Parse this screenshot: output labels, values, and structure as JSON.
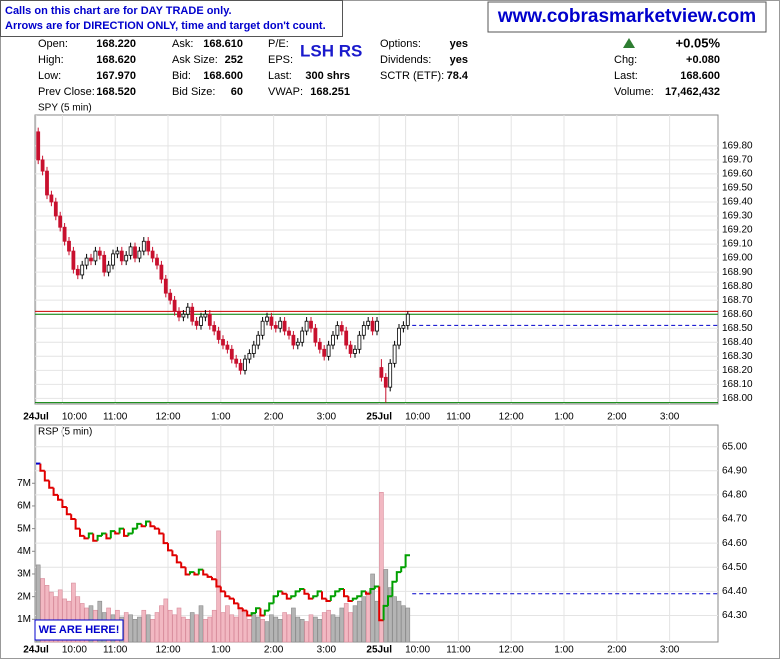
{
  "notes": [
    "Calls on this chart are for DAY TRADE only.",
    "Arrows are for DIRECTION ONLY, time and target don't count."
  ],
  "website": "www.cobrasmarketview.com",
  "quote": {
    "symbol_label": "LSH RS",
    "columns": [
      [
        {
          "label": "Open:",
          "value": "168.220"
        },
        {
          "label": "High:",
          "value": "168.620"
        },
        {
          "label": "Low:",
          "value": "167.970"
        },
        {
          "label": "Prev Close:",
          "value": "168.520"
        }
      ],
      [
        {
          "label": "Ask:",
          "value": "168.610"
        },
        {
          "label": "Ask Size:",
          "value": "252"
        },
        {
          "label": "Bid:",
          "value": "168.600"
        },
        {
          "label": "Bid Size:",
          "value": "60"
        }
      ],
      [
        {
          "label": "P/E:"
        },
        {
          "label": "EPS:"
        },
        {
          "label": "Last:",
          "value": "300 shrs"
        },
        {
          "label": "VWAP:",
          "value": "168.251"
        }
      ],
      [
        {
          "label": "Options:",
          "value": "yes"
        },
        {
          "label": "Dividends:",
          "value": "yes"
        },
        {
          "label": "SCTR (ETF):",
          "value": "78.4"
        }
      ],
      [
        {
          "label": "",
          "value": "+0.05%"
        },
        {
          "label": "Chg:",
          "value": "+0.080"
        },
        {
          "label": "Last:",
          "value": "168.600"
        },
        {
          "label": "Volume:",
          "value": "17,462,432"
        }
      ]
    ]
  },
  "chart_data": [
    {
      "type": "candlestick",
      "title": "SPY (5 min)",
      "up_color": "#ffffff",
      "down_color": "#c8102e",
      "outline_color": "#000000",
      "ylim": [
        167.96,
        170.02
      ],
      "yticks": [
        {
          "value": 168,
          "label": "168.00"
        },
        {
          "value": 168.1,
          "label": "168.10"
        },
        {
          "value": 168.2,
          "label": "168.20"
        },
        {
          "value": 168.3,
          "label": "168.30"
        },
        {
          "value": 168.4,
          "label": "168.40"
        },
        {
          "value": 168.5,
          "label": "168.50"
        },
        {
          "value": 168.6,
          "label": "168.60"
        },
        {
          "value": 168.7,
          "label": "168.70"
        },
        {
          "value": 168.8,
          "label": "168.80"
        },
        {
          "value": 168.9,
          "label": "168.90"
        },
        {
          "value": 169,
          "label": "169.00"
        },
        {
          "value": 169.1,
          "label": "169.10"
        },
        {
          "value": 169.2,
          "label": "169.20"
        },
        {
          "value": 169.3,
          "label": "169.30"
        },
        {
          "value": 169.4,
          "label": "169.40"
        },
        {
          "value": 169.5,
          "label": "169.50"
        },
        {
          "value": 169.6,
          "label": "169.60"
        },
        {
          "value": 169.7,
          "label": "169.70"
        },
        {
          "value": 169.8,
          "label": "169.80"
        }
      ],
      "xticks": [
        {
          "date": "24Jul",
          "times": [
            "10:00",
            "11:00",
            "12:00",
            "1:00",
            "2:00",
            "3:00"
          ]
        },
        {
          "date": "25Jul",
          "times": [
            "10:00",
            "11:00",
            "12:00",
            "1:00",
            "2:00",
            "3:00"
          ]
        }
      ],
      "grid": true,
      "reference_lines": [
        {
          "value": 168.62,
          "color": "#cc0000",
          "dash": false
        },
        {
          "value": 168.6,
          "color": "#008000",
          "dash": false
        },
        {
          "value": 168.52,
          "color": "#0000cc",
          "dash": true
        },
        {
          "value": 167.97,
          "color": "#008000",
          "dash": false
        }
      ],
      "ohlc": [
        [
          169.9,
          169.93,
          169.67,
          169.7
        ],
        [
          169.7,
          169.73,
          169.59,
          169.62
        ],
        [
          169.62,
          169.65,
          169.42,
          169.45
        ],
        [
          169.45,
          169.48,
          169.37,
          169.4
        ],
        [
          169.4,
          169.43,
          169.27,
          169.3
        ],
        [
          169.3,
          169.33,
          169.19,
          169.22
        ],
        [
          169.22,
          169.25,
          169.09,
          169.12
        ],
        [
          169.12,
          169.15,
          169.02,
          169.05
        ],
        [
          169.05,
          169.08,
          168.89,
          168.92
        ],
        [
          168.92,
          168.95,
          168.85,
          168.88
        ],
        [
          168.88,
          168.98,
          168.85,
          168.95
        ],
        [
          168.95,
          169.03,
          168.92,
          169.0
        ],
        [
          169.0,
          169.03,
          168.95,
          168.98
        ],
        [
          168.98,
          169.08,
          168.95,
          169.05
        ],
        [
          169.05,
          169.08,
          168.99,
          169.02
        ],
        [
          169.02,
          169.05,
          168.87,
          168.9
        ],
        [
          168.9,
          168.98,
          168.87,
          168.95
        ],
        [
          168.95,
          169.06,
          168.92,
          169.03
        ],
        [
          169.03,
          169.08,
          169.0,
          169.05
        ],
        [
          169.05,
          169.08,
          168.95,
          168.98
        ],
        [
          168.98,
          169.05,
          168.95,
          169.02
        ],
        [
          169.02,
          169.11,
          168.99,
          169.08
        ],
        [
          169.08,
          169.11,
          168.97,
          169.0
        ],
        [
          169.0,
          169.08,
          168.97,
          169.05
        ],
        [
          169.05,
          169.15,
          169.02,
          169.12
        ],
        [
          169.12,
          169.15,
          169.02,
          169.05
        ],
        [
          169.05,
          169.08,
          168.97,
          169.0
        ],
        [
          169.0,
          169.03,
          168.92,
          168.95
        ],
        [
          168.95,
          168.98,
          168.82,
          168.85
        ],
        [
          168.85,
          168.88,
          168.72,
          168.75
        ],
        [
          168.75,
          168.78,
          168.67,
          168.7
        ],
        [
          168.7,
          168.73,
          168.59,
          168.62
        ],
        [
          168.62,
          168.65,
          168.55,
          168.58
        ],
        [
          168.58,
          168.63,
          168.55,
          168.6
        ],
        [
          168.6,
          168.68,
          168.57,
          168.65
        ],
        [
          168.65,
          168.68,
          168.52,
          168.55
        ],
        [
          168.55,
          168.58,
          168.49,
          168.52
        ],
        [
          168.52,
          168.61,
          168.49,
          168.58
        ],
        [
          168.58,
          168.63,
          168.55,
          168.6
        ],
        [
          168.6,
          168.63,
          168.49,
          168.52
        ],
        [
          168.52,
          168.55,
          168.45,
          168.48
        ],
        [
          168.48,
          168.51,
          168.39,
          168.42
        ],
        [
          168.42,
          168.45,
          168.35,
          168.38
        ],
        [
          168.38,
          168.41,
          168.32,
          168.35
        ],
        [
          168.35,
          168.38,
          168.25,
          168.28
        ],
        [
          168.28,
          168.31,
          168.22,
          168.25
        ],
        [
          168.25,
          168.28,
          168.17,
          168.2
        ],
        [
          168.2,
          168.31,
          168.17,
          168.28
        ],
        [
          168.28,
          168.35,
          168.25,
          168.32
        ],
        [
          168.32,
          168.41,
          168.29,
          168.38
        ],
        [
          168.38,
          168.48,
          168.35,
          168.45
        ],
        [
          168.45,
          168.58,
          168.42,
          168.55
        ],
        [
          168.55,
          168.61,
          168.52,
          168.58
        ],
        [
          168.58,
          168.61,
          168.49,
          168.52
        ],
        [
          168.52,
          168.55,
          168.47,
          168.5
        ],
        [
          168.5,
          168.58,
          168.47,
          168.55
        ],
        [
          168.55,
          168.58,
          168.45,
          168.48
        ],
        [
          168.48,
          168.51,
          168.42,
          168.45
        ],
        [
          168.45,
          168.48,
          168.35,
          168.38
        ],
        [
          168.38,
          168.43,
          168.35,
          168.4
        ],
        [
          168.4,
          168.51,
          168.37,
          168.48
        ],
        [
          168.48,
          168.58,
          168.45,
          168.55
        ],
        [
          168.55,
          168.58,
          168.47,
          168.5
        ],
        [
          168.5,
          168.53,
          168.37,
          168.4
        ],
        [
          168.4,
          168.43,
          168.32,
          168.35
        ],
        [
          168.35,
          168.38,
          168.27,
          168.3
        ],
        [
          168.3,
          168.41,
          168.27,
          168.38
        ],
        [
          168.38,
          168.48,
          168.35,
          168.45
        ],
        [
          168.45,
          168.55,
          168.42,
          168.52
        ],
        [
          168.52,
          168.55,
          168.45,
          168.48
        ],
        [
          168.48,
          168.51,
          168.35,
          168.38
        ],
        [
          168.38,
          168.41,
          168.29,
          168.32
        ],
        [
          168.32,
          168.38,
          168.29,
          168.35
        ],
        [
          168.35,
          168.48,
          168.32,
          168.45
        ],
        [
          168.45,
          168.55,
          168.42,
          168.52
        ],
        [
          168.52,
          168.58,
          168.49,
          168.55
        ],
        [
          168.55,
          168.58,
          168.45,
          168.48
        ],
        [
          168.48,
          168.58,
          168.45,
          168.55
        ],
        [
          168.22,
          168.28,
          168.12,
          168.15
        ],
        [
          168.15,
          168.18,
          167.97,
          168.08
        ],
        [
          168.08,
          168.28,
          168.05,
          168.25
        ],
        [
          168.25,
          168.41,
          168.22,
          168.38
        ],
        [
          168.38,
          168.53,
          168.35,
          168.5
        ],
        [
          168.5,
          168.55,
          168.47,
          168.52
        ],
        [
          168.52,
          168.62,
          168.49,
          168.6
        ]
      ]
    },
    {
      "type": "line",
      "title": "RSP (5 min)",
      "up_color": "#00a000",
      "down_color": "#e00000",
      "flat_color": "#0000cc",
      "ylim": [
        64.19,
        65.09
      ],
      "yticks": [
        {
          "value": 64.3,
          "label": "64.30"
        },
        {
          "value": 64.4,
          "label": "64.40"
        },
        {
          "value": 64.5,
          "label": "64.50"
        },
        {
          "value": 64.6,
          "label": "64.60"
        },
        {
          "value": 64.7,
          "label": "64.70"
        },
        {
          "value": 64.8,
          "label": "64.80"
        },
        {
          "value": 64.9,
          "label": "64.90"
        },
        {
          "value": 65,
          "label": "65.00"
        }
      ],
      "xticks": [
        {
          "date": "24Jul",
          "times": [
            "10:00",
            "11:00",
            "12:00",
            "1:00",
            "2:00",
            "3:00"
          ]
        },
        {
          "date": "25Jul",
          "times": [
            "10:00",
            "11:00",
            "12:00",
            "1:00",
            "2:00",
            "3:00"
          ]
        }
      ],
      "grid": true,
      "reference_lines": [
        {
          "value": 64.39,
          "color": "#0000cc",
          "dash": true
        }
      ],
      "annotation": "WE ARE HERE!",
      "values": [
        64.93,
        64.9,
        64.86,
        64.83,
        64.8,
        64.78,
        64.75,
        64.72,
        64.7,
        64.66,
        64.63,
        64.62,
        64.64,
        64.61,
        64.63,
        64.64,
        64.62,
        64.65,
        64.64,
        64.66,
        64.63,
        64.64,
        64.66,
        64.68,
        64.67,
        64.69,
        64.67,
        64.66,
        64.64,
        64.6,
        64.57,
        64.55,
        64.52,
        64.5,
        64.47,
        64.48,
        64.47,
        64.49,
        64.47,
        64.46,
        64.45,
        64.42,
        64.4,
        64.38,
        64.37,
        64.35,
        64.33,
        64.32,
        64.3,
        64.31,
        64.33,
        64.3,
        64.32,
        64.35,
        64.38,
        64.4,
        64.39,
        64.37,
        64.38,
        64.4,
        64.41,
        64.39,
        64.37,
        64.38,
        64.4,
        64.37,
        64.36,
        64.38,
        64.4,
        64.41,
        64.38,
        64.36,
        64.37,
        64.38,
        64.4,
        64.39,
        64.41,
        64.42,
        64.28,
        64.34,
        64.38,
        64.44,
        64.48,
        64.5,
        64.55
      ],
      "volume": {
        "lim": [
          0,
          9.57
        ],
        "ticks": [
          {
            "value": 1,
            "label": "1M"
          },
          {
            "value": 2,
            "label": "2M"
          },
          {
            "value": 3,
            "label": "3M"
          },
          {
            "value": 4,
            "label": "4M"
          },
          {
            "value": 5,
            "label": "5M"
          },
          {
            "value": 6,
            "label": "6M"
          },
          {
            "value": 7,
            "label": "7M"
          }
        ],
        "up_color": "#b4b4b4",
        "down_color": "#f2b8c2",
        "values": [
          3.4,
          2.8,
          2.5,
          2.2,
          2.0,
          2.3,
          1.9,
          1.8,
          2.6,
          2.0,
          1.7,
          1.5,
          1.6,
          1.4,
          1.8,
          1.3,
          1.5,
          1.2,
          1.4,
          1.1,
          1.3,
          1.2,
          1.0,
          1.1,
          1.4,
          1.2,
          1.0,
          1.3,
          1.6,
          1.9,
          1.4,
          1.2,
          1.5,
          1.1,
          1.0,
          1.3,
          1.2,
          1.6,
          1.0,
          1.1,
          1.4,
          4.9,
          1.3,
          1.6,
          1.2,
          1.1,
          1.5,
          1.3,
          1.0,
          1.2,
          1.1,
          1.0,
          0.9,
          1.2,
          1.1,
          1.0,
          1.3,
          1.2,
          1.5,
          1.1,
          1.0,
          0.9,
          1.2,
          1.1,
          1.0,
          1.3,
          1.4,
          1.2,
          1.1,
          1.5,
          1.7,
          1.3,
          1.6,
          1.8,
          2.0,
          2.2,
          3.0,
          1.8,
          6.6,
          3.2,
          2.4,
          2.0,
          1.8,
          1.6,
          1.5
        ]
      }
    }
  ]
}
